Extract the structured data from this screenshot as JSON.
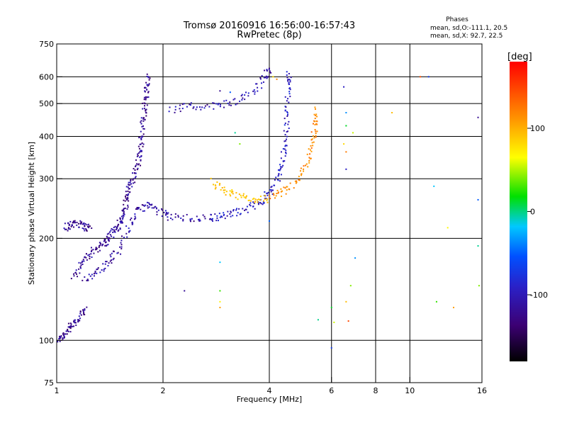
{
  "chart_data": {
    "type": "scatter",
    "title": "Tromsø 20160916 16:56:00-16:57:43",
    "subtitle": "RwPretec (8p)",
    "xlabel": "Frequency [MHz]",
    "ylabel": "Stationary phase Virtual Height [km]",
    "x_scale": "log",
    "y_scale": "log",
    "xlim": [
      1,
      16
    ],
    "ylim": [
      75,
      750
    ],
    "x_ticks": [
      1,
      2,
      4,
      6,
      8,
      10,
      16
    ],
    "x_tick_labels": [
      "1",
      "2",
      "4",
      "6",
      "8",
      "10",
      "16"
    ],
    "y_ticks": [
      75,
      100,
      200,
      300,
      400,
      500,
      600,
      750
    ],
    "y_tick_labels": [
      "75",
      "100",
      "200",
      "300",
      "400",
      "500",
      "600",
      "750"
    ],
    "grid": true,
    "info": {
      "line1": "Phases",
      "line2": "mean, sd,O:-111.1, 20.5",
      "line3": "mean, sd,X: 92.7, 22.5"
    },
    "colorbar": {
      "label": "[deg]",
      "range": [
        -180,
        180
      ],
      "ticks": [
        100,
        0,
        -100
      ],
      "tick_labels": [
        "100",
        "0",
        "-100"
      ]
    },
    "traces": [
      {
        "points": [
          [
            1.0,
            100
          ],
          [
            1.04,
            103
          ],
          [
            1.08,
            108
          ],
          [
            1.12,
            112
          ],
          [
            1.17,
            118
          ],
          [
            1.2,
            125
          ]
        ],
        "phase": -130
      },
      {
        "points": [
          [
            1.05,
            215
          ],
          [
            1.1,
            220
          ],
          [
            1.15,
            222
          ],
          [
            1.2,
            218
          ],
          [
            1.25,
            212
          ]
        ],
        "phase": -130
      },
      {
        "points": [
          [
            1.12,
            155
          ],
          [
            1.18,
            170
          ],
          [
            1.25,
            180
          ],
          [
            1.32,
            190
          ],
          [
            1.38,
            195
          ],
          [
            1.42,
            205
          ],
          [
            1.48,
            215
          ],
          [
            1.52,
            225
          ],
          [
            1.55,
            240
          ],
          [
            1.58,
            260
          ],
          [
            1.6,
            280
          ],
          [
            1.65,
            300
          ],
          [
            1.7,
            330
          ],
          [
            1.72,
            360
          ],
          [
            1.74,
            400
          ],
          [
            1.76,
            450
          ],
          [
            1.78,
            500
          ],
          [
            1.8,
            550
          ],
          [
            1.82,
            600
          ]
        ],
        "phase": -128
      },
      {
        "points": [
          [
            1.2,
            150
          ],
          [
            1.3,
            160
          ],
          [
            1.4,
            170
          ],
          [
            1.5,
            185
          ],
          [
            1.6,
            215
          ],
          [
            1.7,
            240
          ],
          [
            1.8,
            252
          ],
          [
            1.95,
            240
          ],
          [
            2.1,
            232
          ],
          [
            2.4,
            229
          ],
          [
            2.7,
            230
          ]
        ],
        "phase": -123
      },
      {
        "points": [
          [
            2.7,
            230
          ],
          [
            2.9,
            232
          ],
          [
            3.2,
            238
          ],
          [
            3.5,
            246
          ],
          [
            3.8,
            258
          ],
          [
            4.05,
            275
          ],
          [
            4.25,
            305
          ],
          [
            4.38,
            345
          ],
          [
            4.45,
            400
          ],
          [
            4.5,
            470
          ],
          [
            4.53,
            560
          ],
          [
            4.55,
            630
          ]
        ],
        "phase": -112
      },
      {
        "points": [
          [
            2.1,
            480
          ],
          [
            2.4,
            490
          ],
          [
            2.8,
            492
          ],
          [
            3.2,
            505
          ],
          [
            3.6,
            540
          ],
          [
            3.9,
            600
          ],
          [
            4.0,
            640
          ]
        ],
        "phase": -120
      },
      {
        "points": [
          [
            2.75,
            295
          ],
          [
            3.0,
            275
          ],
          [
            3.3,
            265
          ],
          [
            3.6,
            260
          ],
          [
            4.0,
            262
          ]
        ],
        "phase": 95
      },
      {
        "points": [
          [
            4.0,
            262
          ],
          [
            4.4,
            275
          ],
          [
            4.8,
            295
          ],
          [
            5.1,
            330
          ],
          [
            5.3,
            380
          ],
          [
            5.4,
            430
          ],
          [
            5.45,
            480
          ]
        ],
        "phase": 130
      },
      {
        "points": [
          [
            2.9,
            545
          ],
          [
            3.1,
            540
          ],
          [
            3.2,
            410
          ],
          [
            3.3,
            380
          ],
          [
            4.1,
            600
          ],
          [
            4.2,
            590
          ],
          [
            6.5,
            560
          ],
          [
            6.6,
            470
          ],
          [
            6.6,
            430
          ],
          [
            6.9,
            410
          ],
          [
            8.9,
            470
          ],
          [
            10.7,
            600
          ],
          [
            11.3,
            600
          ],
          [
            11.7,
            285
          ],
          [
            11.9,
            130
          ],
          [
            12.8,
            215
          ],
          [
            13.3,
            125
          ],
          [
            15.6,
            455
          ],
          [
            15.6,
            260
          ],
          [
            15.6,
            190
          ],
          [
            15.7,
            145
          ],
          [
            6.5,
            380
          ],
          [
            6.6,
            360
          ],
          [
            6.6,
            320
          ],
          [
            7.0,
            175
          ],
          [
            6.0,
            125
          ],
          [
            6.1,
            113
          ],
          [
            6.6,
            130
          ],
          [
            6.7,
            114
          ],
          [
            6.0,
            95
          ],
          [
            2.9,
            170
          ],
          [
            2.9,
            140
          ],
          [
            2.9,
            130
          ],
          [
            2.9,
            125
          ],
          [
            2.3,
            140
          ],
          [
            4.0,
            225
          ],
          [
            5.5,
            115
          ],
          [
            6.8,
            145
          ]
        ],
        "phase": 10
      }
    ]
  }
}
